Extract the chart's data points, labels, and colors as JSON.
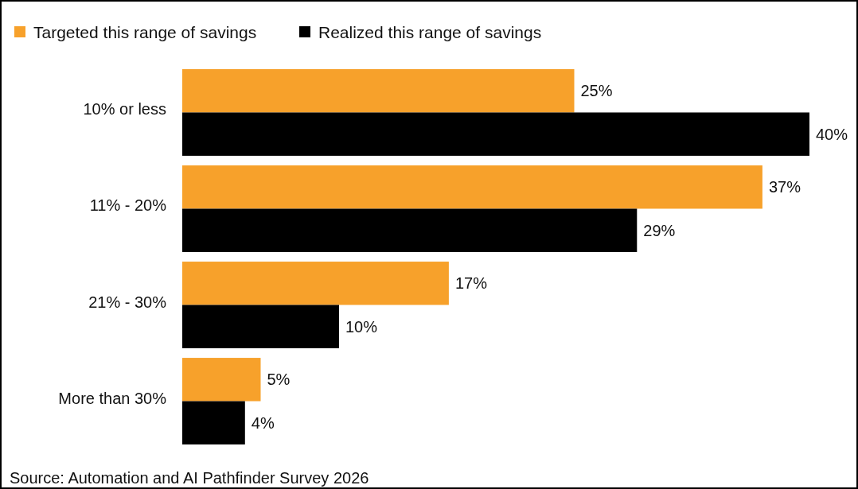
{
  "chart_data": {
    "type": "bar",
    "orientation": "horizontal",
    "categories": [
      "10% or less",
      "11% - 20%",
      "21% - 30%",
      "More than 30%"
    ],
    "series": [
      {
        "name": "Targeted this range of savings",
        "color": "#f7a12b",
        "values": [
          25,
          37,
          17,
          5
        ],
        "value_labels": [
          "25%",
          "37%",
          "17%",
          "5%"
        ]
      },
      {
        "name": "Realized this range of savings",
        "color": "#000000",
        "values": [
          40,
          29,
          10,
          4
        ],
        "value_labels": [
          "40%",
          "29%",
          "10%",
          "4%"
        ]
      }
    ],
    "tick_labels": "y",
    "legend": "top",
    "annotations": [
      "Source: Automation and AI Pathfinder Survey 2026"
    ]
  }
}
